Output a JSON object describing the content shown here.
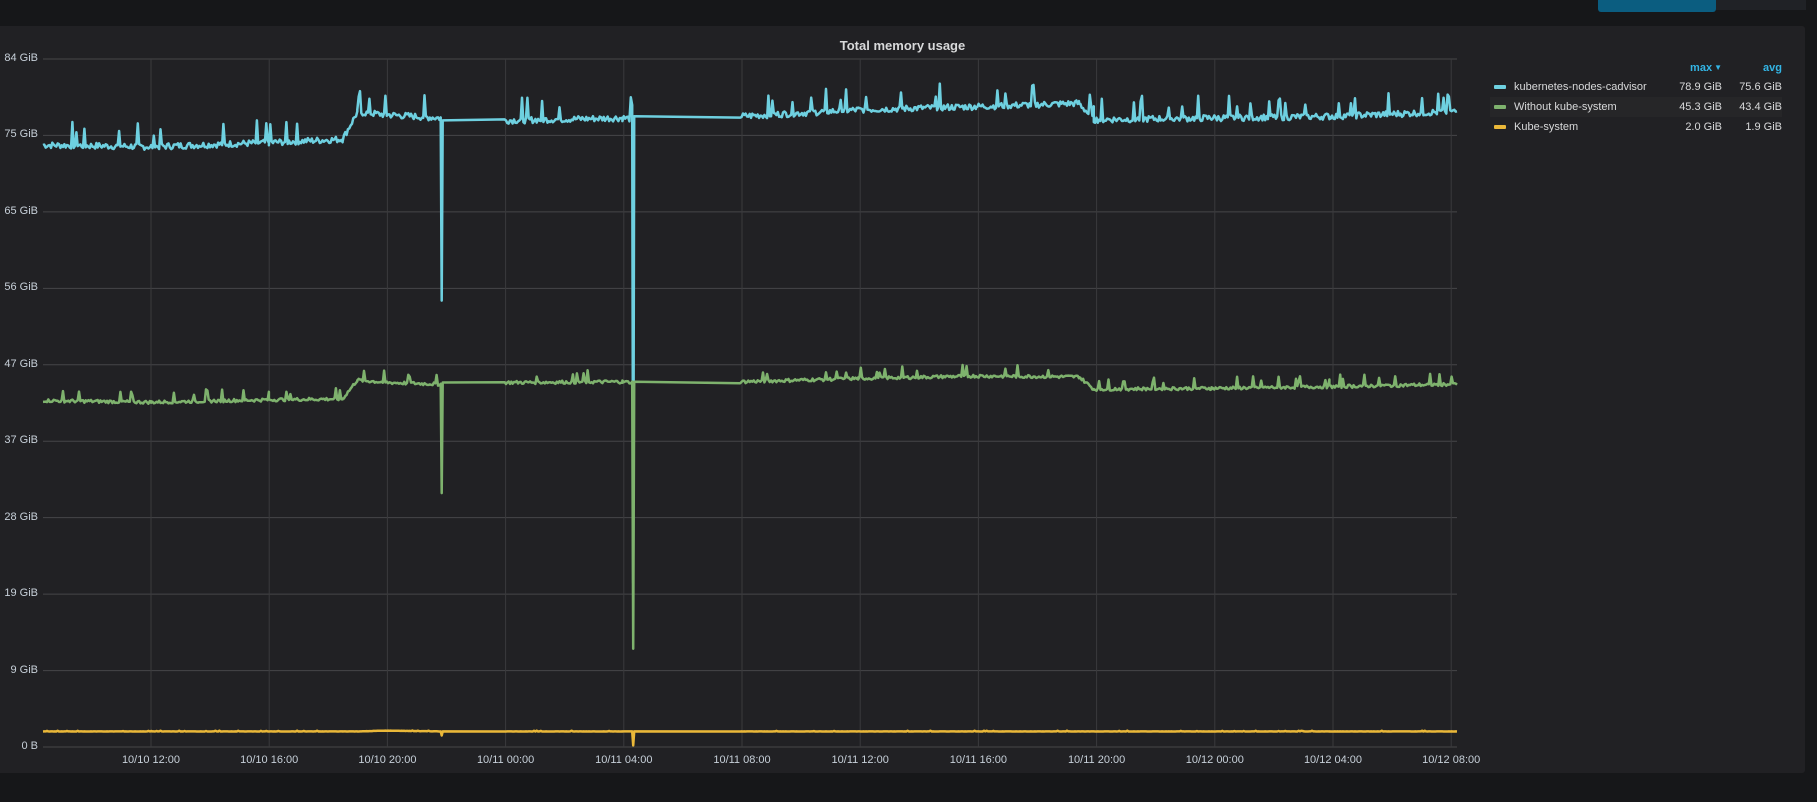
{
  "header": {
    "top_button_label": ""
  },
  "panel": {
    "title": "Total memory usage"
  },
  "legend": {
    "columns": [
      {
        "label": "max",
        "sorted": true
      },
      {
        "label": "avg",
        "sorted": false
      }
    ],
    "items": [
      {
        "name": "kubernetes-nodes-cadvisor",
        "color": "#6ed0e0",
        "max": "78.9 GiB",
        "avg": "75.6 GiB"
      },
      {
        "name": "Without kube-system",
        "color": "#7eb26d",
        "max": "45.3 GiB",
        "avg": "43.4 GiB"
      },
      {
        "name": "Kube-system",
        "color": "#eab839",
        "max": "2.0 GiB",
        "avg": "1.9 GiB"
      }
    ]
  },
  "chart_data": {
    "type": "line",
    "title": "Total memory usage",
    "xlabel": "",
    "ylabel": "",
    "ylim": [
      0,
      84
    ],
    "y_unit": "GiB",
    "y_ticks": [
      "0 B",
      "9 GiB",
      "19 GiB",
      "28 GiB",
      "37 GiB",
      "47 GiB",
      "56 GiB",
      "65 GiB",
      "75 GiB",
      "84 GiB"
    ],
    "x_ticks": [
      "10/10 12:00",
      "10/10 16:00",
      "10/10 20:00",
      "10/11 00:00",
      "10/11 04:00",
      "10/11 08:00",
      "10/11 12:00",
      "10/11 16:00",
      "10/11 20:00",
      "10/12 00:00",
      "10/12 04:00",
      "10/12 08:00"
    ],
    "x": [
      "10/10 08:20",
      "10/10 12:00",
      "10/10 16:00",
      "10/10 18:30",
      "10/10 19:00",
      "10/10 20:00",
      "10/10 21:50",
      "10/10 21:52",
      "10/11 00:00",
      "10/11 04:00",
      "10/11 04:20",
      "10/11 04:22",
      "10/11 08:00",
      "10/11 12:00",
      "10/11 16:00",
      "10/11 19:30",
      "10/11 20:00",
      "10/12 00:00",
      "10/12 04:00",
      "10/12 08:20"
    ],
    "series": [
      {
        "name": "kubernetes-nodes-cadvisor",
        "color": "#6ed0e0",
        "values": [
          73.5,
          73.3,
          73.8,
          74.2,
          77.5,
          77.2,
          76.8,
          54.5,
          76.5,
          76.8,
          76.7,
          20.0,
          77.0,
          77.8,
          78.2,
          78.6,
          76.6,
          76.8,
          77.0,
          77.6
        ]
      },
      {
        "name": "Without kube-system",
        "color": "#7eb26d",
        "values": [
          42.3,
          42.1,
          42.4,
          42.5,
          44.8,
          44.5,
          44.3,
          31.0,
          44.5,
          44.6,
          44.5,
          12.0,
          44.6,
          45.0,
          45.3,
          45.2,
          43.7,
          43.8,
          44.0,
          44.3
        ]
      },
      {
        "name": "Kube-system",
        "color": "#eab839",
        "values": [
          1.9,
          1.9,
          1.9,
          1.9,
          1.9,
          2.0,
          1.9,
          1.4,
          1.9,
          1.9,
          1.9,
          0.2,
          1.9,
          1.9,
          1.9,
          1.9,
          1.9,
          1.9,
          1.9,
          1.9
        ]
      }
    ],
    "grid": true,
    "legend_position": "right",
    "legend_values": {
      "kubernetes-nodes-cadvisor": {
        "max": "78.9 GiB",
        "avg": "75.6 GiB"
      },
      "Without kube-system": {
        "max": "45.3 GiB",
        "avg": "43.4 GiB"
      },
      "Kube-system": {
        "max": "2.0 GiB",
        "avg": "1.9 GiB"
      }
    }
  }
}
